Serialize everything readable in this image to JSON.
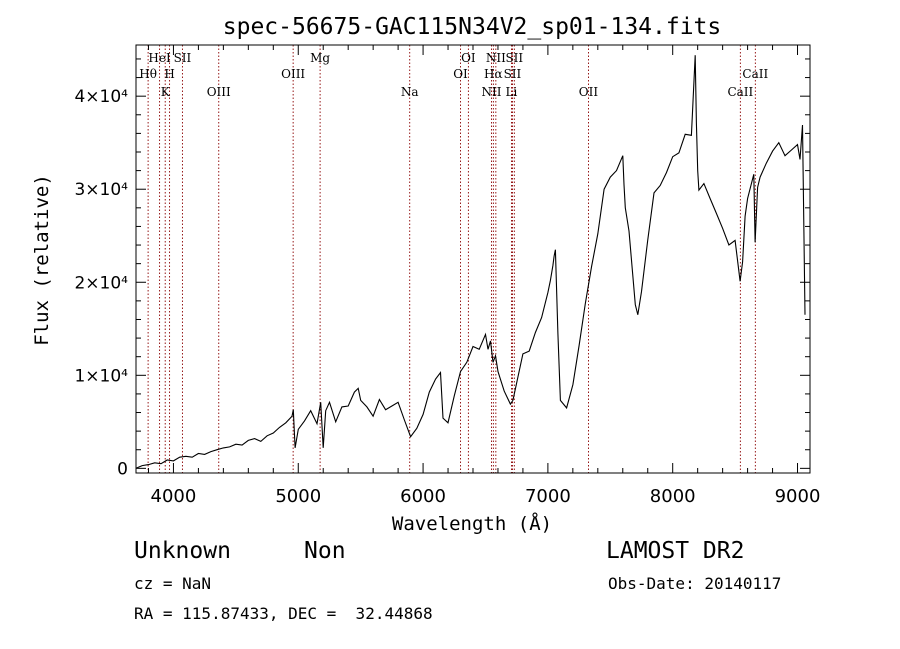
{
  "chart_data": {
    "type": "line",
    "title": "spec-56675-GAC115N34V2_sp01-134.fits",
    "xlabel": "Wavelength (Å)",
    "ylabel": "Flux (relative)",
    "xlim": [
      3700,
      9100
    ],
    "ylim": [
      -500,
      45500
    ],
    "x_ticks": [
      {
        "value": 4000,
        "label": "4000"
      },
      {
        "value": 5000,
        "label": "5000"
      },
      {
        "value": 6000,
        "label": "6000"
      },
      {
        "value": 7000,
        "label": "7000"
      },
      {
        "value": 8000,
        "label": "8000"
      },
      {
        "value": 9000,
        "label": "9000"
      }
    ],
    "y_ticks": [
      {
        "value": 0,
        "label": "0"
      },
      {
        "value": 10000,
        "label": "1×10⁴"
      },
      {
        "value": 20000,
        "label": "2×10⁴"
      },
      {
        "value": 30000,
        "label": "3×10⁴"
      },
      {
        "value": 40000,
        "label": "4×10⁴"
      }
    ],
    "grid": false,
    "series": [
      {
        "x": [
          3700,
          3750,
          3800,
          3850,
          3900,
          3950,
          4000,
          4050,
          4100,
          4150,
          4200,
          4250,
          4300,
          4350,
          4400,
          4450,
          4500,
          4550,
          4600,
          4650,
          4700,
          4750,
          4800,
          4850,
          4900,
          4950,
          4960,
          4975,
          5000,
          5050,
          5100,
          5150,
          5180,
          5200,
          5220,
          5250,
          5300,
          5350,
          5400,
          5450,
          5480,
          5500,
          5550,
          5600,
          5650,
          5700,
          5750,
          5800,
          5850,
          5900,
          5950,
          6000,
          6050,
          6100,
          6140,
          6160,
          6200,
          6250,
          6300,
          6350,
          6400,
          6450,
          6500,
          6520,
          6540,
          6560,
          6580,
          6600,
          6650,
          6700,
          6720,
          6750,
          6800,
          6850,
          6900,
          6950,
          7000,
          7020,
          7040,
          7050,
          7060,
          7080,
          7100,
          7150,
          7200,
          7250,
          7300,
          7350,
          7400,
          7450,
          7500,
          7550,
          7600,
          7610,
          7620,
          7650,
          7700,
          7720,
          7750,
          7800,
          7850,
          7900,
          7950,
          8000,
          8050,
          8100,
          8150,
          8180,
          8190,
          8200,
          8210,
          8250,
          8300,
          8350,
          8400,
          8450,
          8500,
          8540,
          8560,
          8580,
          8600,
          8650,
          8660,
          8680,
          8700,
          8750,
          8800,
          8850,
          8900,
          8950,
          9000,
          9020,
          9040,
          9060
        ],
        "y": [
          0,
          300,
          400,
          600,
          500,
          900,
          800,
          1200,
          1300,
          1200,
          1600,
          1500,
          1800,
          2000,
          2200,
          2300,
          2600,
          2500,
          3000,
          3200,
          2900,
          3500,
          3800,
          4400,
          4900,
          5600,
          6300,
          2200,
          4200,
          5100,
          6200,
          4800,
          7100,
          2200,
          6200,
          7100,
          5000,
          6600,
          6700,
          8200,
          8600,
          7300,
          6600,
          5600,
          7400,
          6300,
          6700,
          7100,
          5200,
          3400,
          4300,
          5800,
          8200,
          9600,
          10300,
          5400,
          4900,
          7800,
          10400,
          11400,
          13100,
          12800,
          14400,
          12800,
          13700,
          11400,
          12100,
          10400,
          8300,
          6900,
          7300,
          9200,
          12300,
          12600,
          14600,
          16200,
          18900,
          20200,
          21800,
          22800,
          23500,
          14500,
          7300,
          6500,
          9000,
          13200,
          17700,
          21700,
          25200,
          30000,
          31300,
          32000,
          33600,
          30500,
          28000,
          25500,
          17600,
          16500,
          19000,
          24500,
          29600,
          30400,
          31800,
          33500,
          33900,
          35900,
          35800,
          44400,
          37100,
          32000,
          29900,
          30600,
          29000,
          27400,
          25800,
          24000,
          24500,
          20100,
          22200,
          27100,
          29000,
          31600,
          24300,
          30200,
          31300,
          32800,
          34100,
          35000,
          33600,
          34200,
          34800,
          33200,
          36900,
          16500
        ]
      }
    ],
    "emission_lines": [
      {
        "label": "Hθ",
        "x": 3797,
        "row": 2
      },
      {
        "label": "HeI",
        "x": 3889,
        "row": 1
      },
      {
        "label": "K",
        "x": 3934,
        "row": 3
      },
      {
        "label": "H",
        "x": 3969,
        "row": 2
      },
      {
        "label": "SII",
        "x": 4072,
        "row": 1
      },
      {
        "label": "OIII",
        "x": 4363,
        "row": 3
      },
      {
        "label": "OIII",
        "x": 4959,
        "row": 2
      },
      {
        "label": "Mg",
        "x": 5175,
        "row": 1
      },
      {
        "label": "Na",
        "x": 5893,
        "row": 3
      },
      {
        "label": "OI",
        "x": 6300,
        "row": 2
      },
      {
        "label": "OI",
        "x": 6363,
        "row": 1
      },
      {
        "label": "NII",
        "x": 6548,
        "row": 3
      },
      {
        "label": "Hα",
        "x": 6563,
        "row": 2
      },
      {
        "label": "NII",
        "x": 6583,
        "row": 1
      },
      {
        "label": "Li",
        "x": 6708,
        "row": 3
      },
      {
        "label": "SII",
        "x": 6716,
        "row": 2
      },
      {
        "label": "SII",
        "x": 6731,
        "row": 1
      },
      {
        "label": "OII",
        "x": 7325,
        "row": 3
      },
      {
        "label": "CaII",
        "x": 8542,
        "row": 3
      },
      {
        "label": "CaII",
        "x": 8662,
        "row": 2
      }
    ],
    "colors": {
      "line": "#000000",
      "marker": "#8b0000"
    }
  },
  "footer": {
    "object_class": "Unknown",
    "subclass": "Non",
    "survey": "LAMOST DR2",
    "redshift": "cz = NaN",
    "obs_date": "Obs-Date: 20140117",
    "coords": "RA = 115.87433, DEC =  32.44868"
  }
}
